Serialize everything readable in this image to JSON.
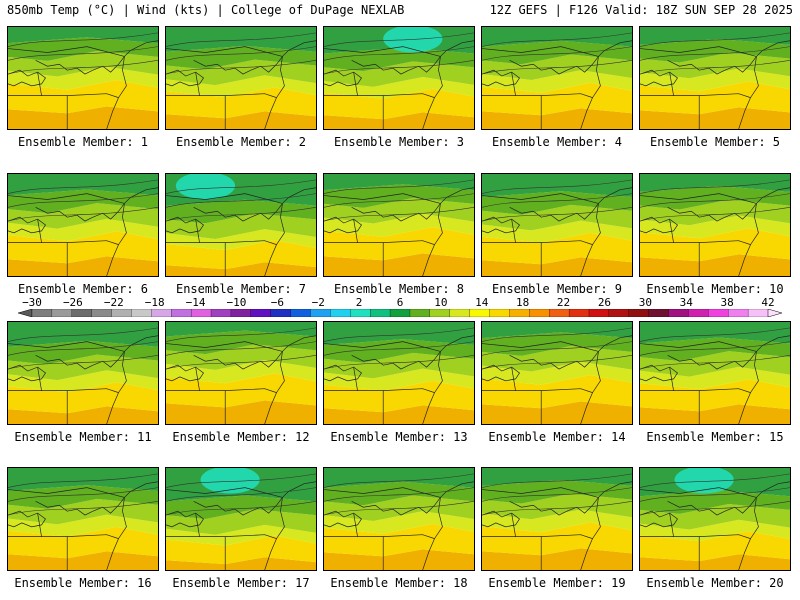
{
  "header": {
    "left": "850mb Temp (°C) | Wind (kts) | College of DuPage NEXLAB",
    "right": "12Z GEFS | F126 Valid: 18Z SUN SEP 28 2025"
  },
  "panels": [
    {
      "label": "Ensemble Member: 1"
    },
    {
      "label": "Ensemble Member: 2"
    },
    {
      "label": "Ensemble Member: 3"
    },
    {
      "label": "Ensemble Member: 4"
    },
    {
      "label": "Ensemble Member: 5"
    },
    {
      "label": "Ensemble Member: 6"
    },
    {
      "label": "Ensemble Member: 7"
    },
    {
      "label": "Ensemble Member: 8"
    },
    {
      "label": "Ensemble Member: 9"
    },
    {
      "label": "Ensemble Member: 10"
    },
    {
      "label": "Ensemble Member: 11"
    },
    {
      "label": "Ensemble Member: 12"
    },
    {
      "label": "Ensemble Member: 13"
    },
    {
      "label": "Ensemble Member: 14"
    },
    {
      "label": "Ensemble Member: 15"
    },
    {
      "label": "Ensemble Member: 16"
    },
    {
      "label": "Ensemble Member: 17"
    },
    {
      "label": "Ensemble Member: 18"
    },
    {
      "label": "Ensemble Member: 19"
    },
    {
      "label": "Ensemble Member: 20"
    }
  ],
  "colorbar": {
    "tick_labels": [
      "-30",
      "-26",
      "-22",
      "-18",
      "-14",
      "-10",
      "-6",
      "-2",
      "2",
      "6",
      "10",
      "14",
      "18",
      "22",
      "26",
      "30",
      "34",
      "38",
      "42"
    ],
    "colors": [
      "#7e7e7e",
      "#9a9a9a",
      "#6c6c6c",
      "#8a8a8a",
      "#b0b0b0",
      "#c8c8c8",
      "#d6a6e6",
      "#c070e0",
      "#e060e0",
      "#a040c0",
      "#8020a0",
      "#6010c0",
      "#2030c0",
      "#1060e0",
      "#20a0f0",
      "#20d0f0",
      "#20e0c0",
      "#10c080",
      "#10a040",
      "#60b020",
      "#a0d020",
      "#d8e820",
      "#f8f800",
      "#f8d800",
      "#f8b000",
      "#f89000",
      "#f06010",
      "#e03010",
      "#d01010",
      "#b01010",
      "#901010",
      "#701030",
      "#a01080",
      "#d020b0",
      "#f040e0",
      "#f080f0",
      "#f8c0f8"
    ],
    "min": -30,
    "max": 42
  }
}
